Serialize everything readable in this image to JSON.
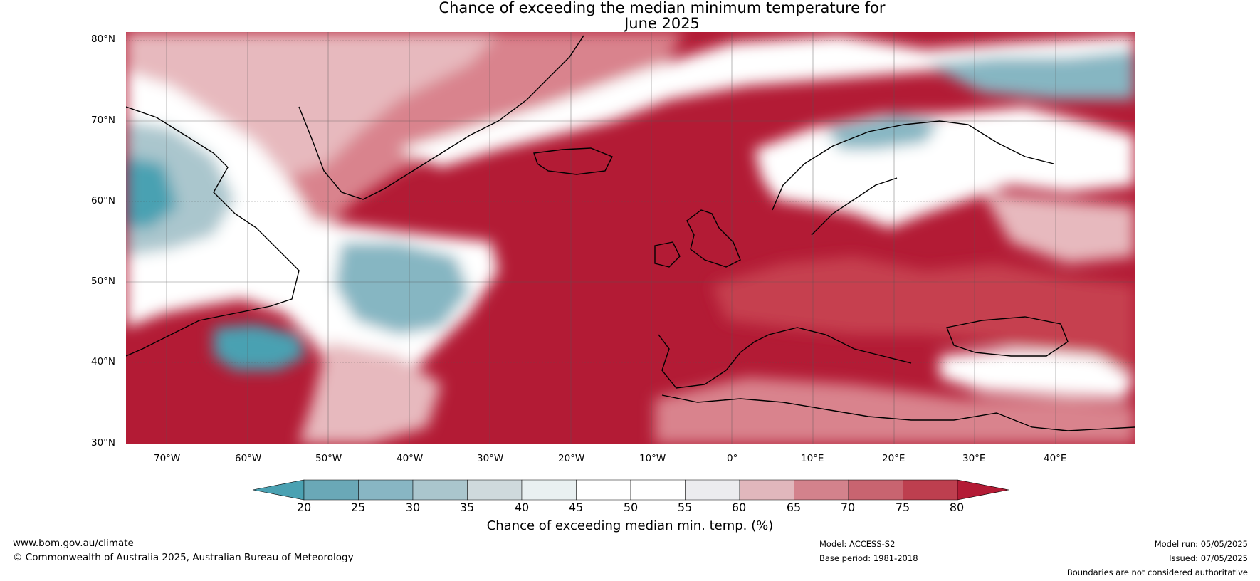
{
  "title": {
    "line1": "Chance of exceeding the median minimum temperature for",
    "line2": "June 2025"
  },
  "map": {
    "lat_labels": [
      "80°N",
      "70°N",
      "60°N",
      "50°N",
      "40°N",
      "30°N"
    ],
    "lon_labels": [
      "70°W",
      "60°W",
      "50°W",
      "40°W",
      "30°W",
      "20°W",
      "10°W",
      "0°",
      "10°E",
      "20°E",
      "30°E",
      "40°E"
    ],
    "colors": {
      "very_high": "#b31b35",
      "high": "#c6404f",
      "mid_high": "#d9838d",
      "light_pink": "#e7b9be",
      "neutral": "#ffffff",
      "light_blue": "#cfdadd",
      "mid_blue": "#86b6c2",
      "deep_blue": "#4aa1b2"
    }
  },
  "colorbar": {
    "title": "Chance of exceeding median min. temp. (%)",
    "ticks": [
      "20",
      "25",
      "30",
      "35",
      "40",
      "45",
      "50",
      "55",
      "60",
      "65",
      "70",
      "75",
      "80"
    ],
    "colors": [
      "#4aa1b2",
      "#6aa8b7",
      "#88b6c3",
      "#aac6cd",
      "#cfdadd",
      "#e9f0f1",
      "#ffffff",
      "#ffffff",
      "#ececef",
      "#e1b7bc",
      "#d3828c",
      "#c86470",
      "#bd3f4f",
      "#b31b35"
    ]
  },
  "footer": {
    "left_line1": "www.bom.gov.au/climate",
    "left_line2": "© Commonwealth of Australia 2025, Australian Bureau of Meteorology",
    "mid_line1": "Model: ACCESS-S2",
    "mid_line2": "Base period: 1981-2018",
    "right_line1": "Model run: 05/05/2025",
    "right_line2": "Issued: 07/05/2025",
    "right_line3": "Boundaries are not considered authoritative"
  }
}
